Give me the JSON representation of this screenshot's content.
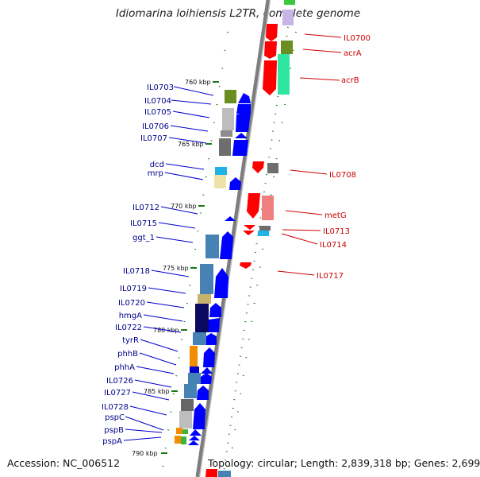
{
  "title": "Idiomarina loihiensis L2TR, complete genome",
  "footer": {
    "accession": "Accession: NC_006512",
    "stats": "Topology: circular; Length: 2,839,318 bp; Genes: 2,699"
  },
  "scale_labels": [
    "760 kbp",
    "765 kbp",
    "770 kbp",
    "775 kbp",
    "780 kbp",
    "785 kbp",
    "790 kbp"
  ],
  "left_genes": [
    "IL0703",
    "IL0704",
    "IL0705",
    "IL0706",
    "IL0707",
    "dcd",
    "mrp",
    "IL0712",
    "IL0715",
    "ggt_1",
    "IL0718",
    "IL0719",
    "IL0720",
    "hmgA",
    "IL0722",
    "tyrR",
    "phhB",
    "phhA",
    "IL0726",
    "IL0727",
    "IL0728",
    "pspC",
    "pspB",
    "pspA"
  ],
  "right_genes": [
    "IL0700",
    "acrA",
    "acrB",
    "IL0708",
    "metG",
    "IL0713",
    "IL0714",
    "IL0717"
  ],
  "colors": {
    "forward_strand": "#0000ff",
    "reverse_strand": "#ff0000",
    "backbone": "#808080",
    "tick": "#006400",
    "left_label": "#00008b",
    "right_label": "#cc0000"
  }
}
